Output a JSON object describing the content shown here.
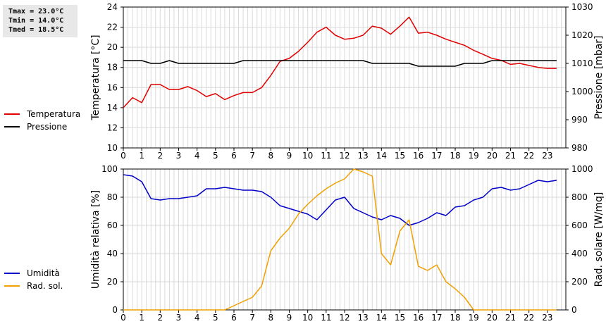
{
  "stats": {
    "tmax": "Tmax = 23.0°C",
    "tmin": "Tmin = 14.0°C",
    "tmed": "Tmed = 18.5°C"
  },
  "legend_top": [
    {
      "label": "Temperatura",
      "color": "#e00000"
    },
    {
      "label": "Pressione",
      "color": "#000000"
    }
  ],
  "legend_bottom": [
    {
      "label": "Umidità",
      "color": "#0000c8"
    },
    {
      "label": "Rad. sol.",
      "color": "#f0a000"
    }
  ],
  "chart_data": [
    {
      "type": "line",
      "ylabel": "Temperatura [°C]",
      "y2label": "Pressione [mbar]",
      "xlim": [
        0,
        24
      ],
      "ylim": [
        10,
        24
      ],
      "y2lim": [
        980,
        1030
      ],
      "yticks": [
        10,
        12,
        14,
        16,
        18,
        20,
        22,
        24
      ],
      "y2ticks": [
        980,
        990,
        1000,
        1010,
        1020,
        1030
      ],
      "xticks": [
        0,
        1,
        2,
        3,
        4,
        5,
        6,
        7,
        8,
        9,
        10,
        11,
        12,
        13,
        14,
        15,
        16,
        17,
        18,
        19,
        20,
        21,
        22,
        23
      ],
      "grid": true,
      "series": [
        {
          "name": "Temperatura",
          "color": "#e00000",
          "axis": "left",
          "x": [
            0,
            0.5,
            1,
            1.5,
            2,
            2.5,
            3,
            3.5,
            4,
            4.5,
            5,
            5.5,
            6,
            6.5,
            7,
            7.5,
            8,
            8.5,
            9,
            9.5,
            10,
            10.5,
            11,
            11.5,
            12,
            12.5,
            13,
            13.5,
            14,
            14.5,
            15,
            15.5,
            16,
            16.5,
            17,
            17.5,
            18,
            18.5,
            19,
            19.5,
            20,
            20.5,
            21,
            21.5,
            22,
            22.5,
            23,
            23.5
          ],
          "y": [
            14.0,
            15.0,
            14.5,
            16.3,
            16.3,
            15.8,
            15.8,
            16.1,
            15.7,
            15.1,
            15.4,
            14.8,
            15.2,
            15.5,
            15.5,
            16.0,
            17.2,
            18.6,
            18.9,
            19.6,
            20.5,
            21.5,
            22.0,
            21.2,
            20.8,
            20.9,
            21.2,
            22.1,
            21.9,
            21.3,
            22.1,
            23.0,
            21.4,
            21.5,
            21.2,
            20.8,
            20.5,
            20.2,
            19.7,
            19.3,
            18.9,
            18.7,
            18.3,
            18.4,
            18.2,
            18.0,
            17.9,
            17.9
          ]
        },
        {
          "name": "Pressione",
          "color": "#000000",
          "axis": "right",
          "x": [
            0,
            1,
            1.5,
            2,
            2.5,
            3,
            4,
            5,
            6,
            6.5,
            7,
            8,
            9,
            10,
            11,
            12,
            13,
            13.5,
            14,
            15,
            15.5,
            16,
            17,
            18,
            18.5,
            19,
            19.5,
            20,
            21,
            22,
            23,
            23.5
          ],
          "y": [
            1011,
            1011,
            1010,
            1010,
            1011,
            1010,
            1010,
            1010,
            1010,
            1011,
            1011,
            1011,
            1011,
            1011,
            1011,
            1011,
            1011,
            1010,
            1010,
            1010,
            1010,
            1009,
            1009,
            1009,
            1010,
            1010,
            1010,
            1011,
            1011,
            1011,
            1011,
            1011
          ]
        }
      ]
    },
    {
      "type": "line",
      "ylabel": "Umidità relativa [%]",
      "y2label": "Rad. solare [W/mq]",
      "xlim": [
        0,
        24
      ],
      "ylim": [
        0,
        100
      ],
      "y2lim": [
        0,
        1000
      ],
      "yticks": [
        0,
        20,
        40,
        60,
        80,
        100
      ],
      "y2ticks": [
        0,
        200,
        400,
        600,
        800,
        1000
      ],
      "xticks": [
        0,
        1,
        2,
        3,
        4,
        5,
        6,
        7,
        8,
        9,
        10,
        11,
        12,
        13,
        14,
        15,
        16,
        17,
        18,
        19,
        20,
        21,
        22,
        23
      ],
      "grid": true,
      "series": [
        {
          "name": "Umidità",
          "color": "#0000c8",
          "axis": "left",
          "x": [
            0,
            0.5,
            1,
            1.5,
            2,
            2.5,
            3,
            3.5,
            4,
            4.5,
            5,
            5.5,
            6,
            6.5,
            7,
            7.5,
            8,
            8.5,
            9,
            9.5,
            10,
            10.5,
            11,
            11.5,
            12,
            12.5,
            13,
            13.5,
            14,
            14.5,
            15,
            15.5,
            16,
            16.5,
            17,
            17.5,
            18,
            18.5,
            19,
            19.5,
            20,
            20.5,
            21,
            21.5,
            22,
            22.5,
            23,
            23.5
          ],
          "y": [
            96,
            95,
            91,
            79,
            78,
            79,
            79,
            80,
            81,
            86,
            86,
            87,
            86,
            85,
            85,
            84,
            80,
            74,
            72,
            70,
            68,
            64,
            71,
            78,
            80,
            72,
            69,
            66,
            64,
            67,
            65,
            60,
            62,
            65,
            69,
            67,
            73,
            74,
            78,
            80,
            86,
            87,
            85,
            86,
            89,
            92,
            91,
            92
          ]
        },
        {
          "name": "Rad. sol.",
          "color": "#f0a000",
          "axis": "right",
          "x": [
            0,
            5.5,
            6,
            6.5,
            7,
            7.5,
            8,
            8.5,
            9,
            9.5,
            10,
            10.5,
            11,
            11.5,
            12,
            12.5,
            13,
            13.5,
            14,
            14.5,
            15,
            15.5,
            16,
            16.5,
            17,
            17.5,
            18,
            18.5,
            19,
            19.5,
            23.5
          ],
          "y": [
            0,
            0,
            30,
            60,
            90,
            170,
            420,
            510,
            580,
            680,
            750,
            810,
            860,
            900,
            930,
            1000,
            980,
            950,
            400,
            320,
            560,
            640,
            310,
            280,
            320,
            200,
            150,
            90,
            0,
            0,
            0
          ]
        }
      ]
    }
  ]
}
